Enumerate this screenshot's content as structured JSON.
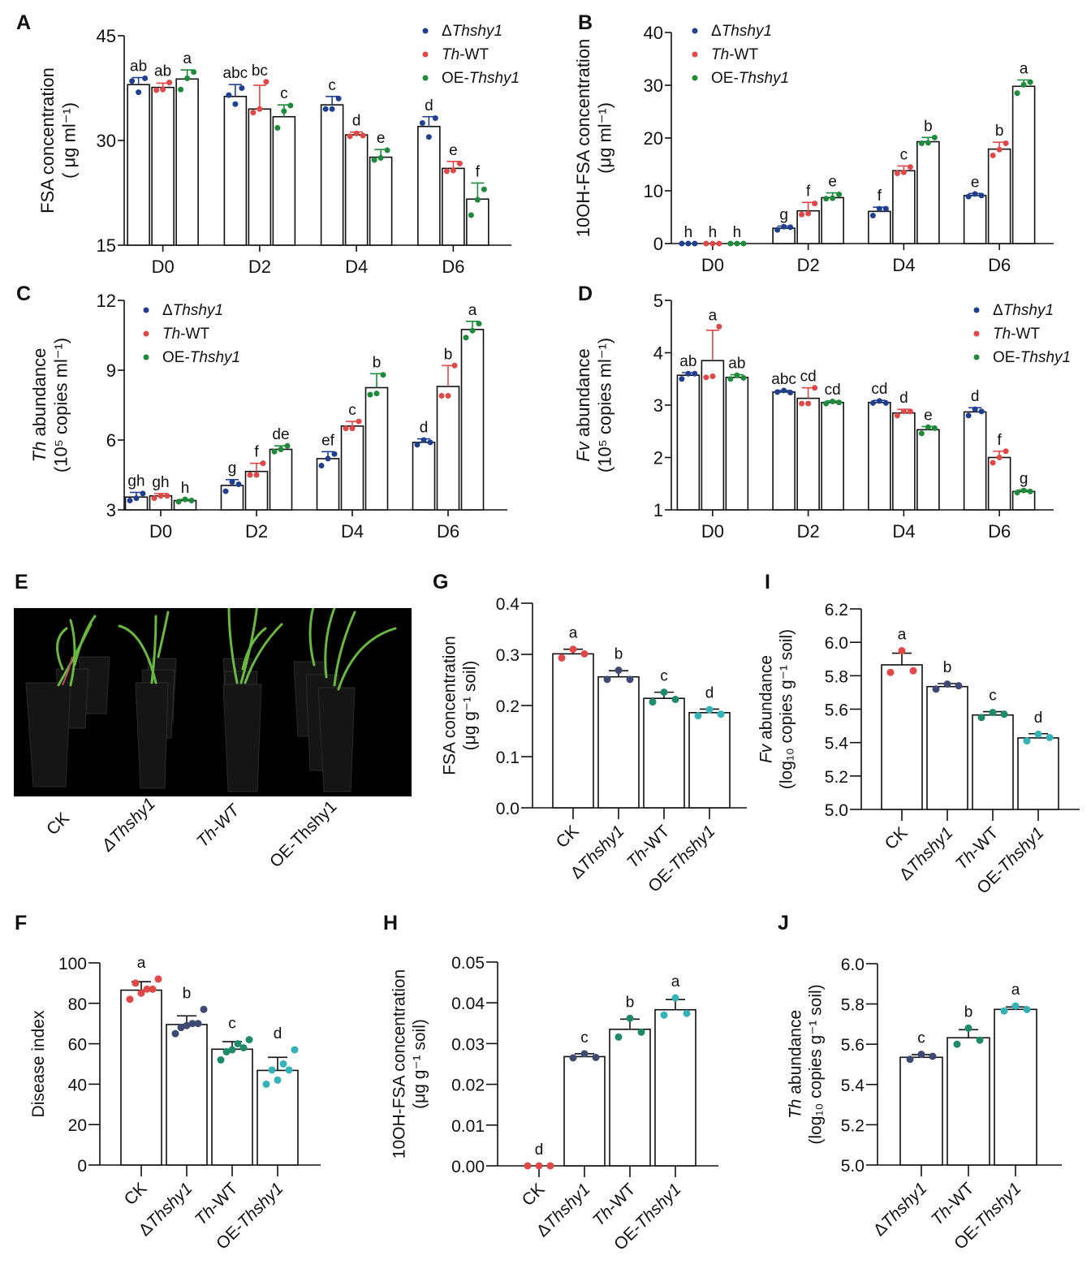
{
  "colors": {
    "blue": "#1f3f8f",
    "red": "#e04848",
    "green": "#1e8a3c",
    "navy": "#3e4a72",
    "teal_green": "#1f8a6a",
    "cyan": "#33b3b8"
  },
  "legend": [
    {
      "prefix": "Δ",
      "italic": "Thshy1",
      "suffix": "",
      "color": "#1f3f8f"
    },
    {
      "prefix": "",
      "italic": "Th",
      "suffix": "-WT",
      "color": "#e04848"
    },
    {
      "prefix": "OE-",
      "italic": "Thshy1",
      "suffix": "",
      "color": "#1e8a3c"
    }
  ],
  "panel_E": {
    "label": "E",
    "photo_labels": [
      "CK",
      "ΔThshy1",
      "Th-WT",
      "OE-Thshy1"
    ]
  },
  "chart_data": [
    {
      "id": "A",
      "label": "A",
      "type": "bar",
      "ylabel_line1": "FSA concentration",
      "ylabel_line2": "( μg ml⁻¹)",
      "ylim": [
        15,
        45
      ],
      "yticks": [
        15,
        30,
        45
      ],
      "categories": [
        "D0",
        "D2",
        "D4",
        "D6"
      ],
      "legend_position": "top-right",
      "series": [
        {
          "name": "ΔThshy1",
          "color": "#1f3f8f",
          "values": [
            38.0,
            36.3,
            35.1,
            32.0
          ],
          "err": [
            1.0,
            1.7,
            1.2,
            1.4
          ],
          "points": [
            [
              38.5,
              36.9,
              38.9
            ],
            [
              36.5,
              35.2,
              37.5
            ],
            [
              34.5,
              34.5,
              36.0
            ],
            [
              32.5,
              30.5,
              33.2
            ]
          ],
          "letters": [
            "ab",
            "abc",
            "c",
            "d"
          ]
        },
        {
          "name": "Th-WT",
          "color": "#e04848",
          "values": [
            37.6,
            34.5,
            30.8,
            26.0
          ],
          "err": [
            0.6,
            3.4,
            0.4,
            1.0
          ],
          "points": [
            [
              37.2,
              37.3,
              38.3
            ],
            [
              34.0,
              34.5,
              38.4
            ],
            [
              30.6,
              31.0,
              30.7
            ],
            [
              25.6,
              25.7,
              26.7
            ]
          ],
          "letters": [
            "ab",
            "bc",
            "d",
            "e"
          ]
        },
        {
          "name": "OE-Thshy1",
          "color": "#1e8a3c",
          "values": [
            38.8,
            33.4,
            27.6,
            21.6
          ],
          "err": [
            1.3,
            1.7,
            1.1,
            2.3
          ],
          "points": [
            [
              37.3,
              38.9,
              39.8
            ],
            [
              31.8,
              34.2,
              35.0
            ],
            [
              27.2,
              27.5,
              28.6
            ],
            [
              19.3,
              21.5,
              23.0
            ]
          ],
          "letters": [
            "a",
            "c",
            "e",
            "f"
          ]
        }
      ]
    },
    {
      "id": "B",
      "label": "B",
      "type": "bar",
      "ylabel_line1": "10OH-FSA concentration",
      "ylabel_line2": "(μg ml⁻¹)",
      "ylim": [
        0,
        40
      ],
      "yticks": [
        0,
        10,
        20,
        30,
        40
      ],
      "categories": [
        "D0",
        "D2",
        "D4",
        "D6"
      ],
      "legend_position": "top-left",
      "series": [
        {
          "name": "ΔThshy1",
          "color": "#1f3f8f",
          "values": [
            0,
            2.9,
            6.1,
            9.1
          ],
          "err": [
            0,
            0.4,
            0.8,
            0.4
          ],
          "points": [
            [
              0,
              0,
              0
            ],
            [
              2.6,
              3.2,
              3.1
            ],
            [
              5.3,
              6.6,
              6.6
            ],
            [
              8.9,
              9.4,
              9.1
            ]
          ],
          "letters": [
            "h",
            "g",
            "f",
            "e"
          ]
        },
        {
          "name": "Th-WT",
          "color": "#e04848",
          "values": [
            0,
            6.2,
            13.8,
            17.9
          ],
          "err": [
            0,
            1.6,
            0.9,
            1.3
          ],
          "points": [
            [
              0,
              0,
              0
            ],
            [
              5.5,
              5.7,
              7.6
            ],
            [
              13.3,
              13.5,
              14.5
            ],
            [
              16.7,
              17.8,
              19.0
            ]
          ],
          "letters": [
            "h",
            "f",
            "c",
            "b"
          ]
        },
        {
          "name": "OE-Thshy1",
          "color": "#1e8a3c",
          "values": [
            0,
            8.7,
            19.3,
            29.8
          ],
          "err": [
            0,
            0.9,
            0.8,
            1.2
          ],
          "points": [
            [
              0,
              0,
              0
            ],
            [
              8.5,
              8.6,
              9.3
            ],
            [
              19.0,
              19.1,
              20.1
            ],
            [
              28.5,
              30.1,
              30.6
            ]
          ],
          "letters": [
            "h",
            "e",
            "b",
            "a"
          ]
        }
      ]
    },
    {
      "id": "C",
      "label": "C",
      "type": "bar",
      "ylabel_line1_italic": "Th",
      "ylabel_line1": " abundance",
      "ylabel_line2": "(10⁵ copies ml⁻¹)",
      "ylim": [
        3,
        12
      ],
      "yticks": [
        3,
        6,
        9,
        12
      ],
      "categories": [
        "D0",
        "D2",
        "D4",
        "D6"
      ],
      "legend_position": "top-left",
      "series": [
        {
          "name": "ΔThshy1",
          "color": "#1f3f8f",
          "values": [
            3.55,
            4.05,
            5.2,
            5.9
          ],
          "err": [
            0.2,
            0.25,
            0.3,
            0.15
          ],
          "points": [
            [
              3.4,
              3.5,
              3.7
            ],
            [
              3.8,
              4.2,
              4.1
            ],
            [
              4.9,
              5.2,
              5.4
            ],
            [
              5.8,
              6.0,
              5.9
            ]
          ],
          "letters": [
            "gh",
            "g",
            "ef",
            "d"
          ]
        },
        {
          "name": "Th-WT",
          "color": "#e04848",
          "values": [
            3.6,
            4.65,
            6.6,
            8.3
          ],
          "err": [
            0.1,
            0.35,
            0.2,
            0.9
          ],
          "points": [
            [
              3.5,
              3.6,
              3.6
            ],
            [
              4.5,
              4.5,
              5.0
            ],
            [
              6.5,
              6.5,
              6.8
            ],
            [
              7.9,
              7.9,
              9.2
            ]
          ],
          "letters": [
            "gh",
            "f",
            "c",
            "b"
          ]
        },
        {
          "name": "OE-Thshy1",
          "color": "#1e8a3c",
          "values": [
            3.4,
            5.6,
            8.25,
            10.75
          ],
          "err": [
            0.05,
            0.15,
            0.6,
            0.35
          ],
          "points": [
            [
              3.35,
              3.45,
              3.4
            ],
            [
              5.5,
              5.6,
              5.75
            ],
            [
              7.95,
              8.0,
              8.8
            ],
            [
              10.4,
              10.7,
              11.0
            ]
          ],
          "letters": [
            "h",
            "de",
            "b",
            "a"
          ]
        }
      ]
    },
    {
      "id": "D",
      "label": "D",
      "type": "bar",
      "ylabel_line1_italic": "Fv",
      "ylabel_line1": " abundance",
      "ylabel_line2": "(10⁵ copies ml⁻¹)",
      "ylim": [
        1,
        5
      ],
      "yticks": [
        1,
        2,
        3,
        4,
        5
      ],
      "categories": [
        "D0",
        "D2",
        "D4",
        "D6"
      ],
      "legend_position": "top-right",
      "series": [
        {
          "name": "ΔThshy1",
          "color": "#1f3f8f",
          "values": [
            3.57,
            3.25,
            3.05,
            2.87
          ],
          "err": [
            0.05,
            0.03,
            0.04,
            0.08
          ],
          "points": [
            [
              3.5,
              3.6,
              3.6
            ],
            [
              3.25,
              3.28,
              3.24
            ],
            [
              3.04,
              3.08,
              3.04
            ],
            [
              2.8,
              2.92,
              2.88
            ]
          ],
          "letters": [
            "ab",
            "abc",
            "cd",
            "d"
          ]
        },
        {
          "name": "Th-WT",
          "color": "#e04848",
          "values": [
            3.85,
            3.13,
            2.85,
            2.0
          ],
          "err": [
            0.58,
            0.2,
            0.07,
            0.12
          ],
          "points": [
            [
              3.53,
              3.55,
              4.5
            ],
            [
              3.03,
              3.03,
              3.33
            ],
            [
              2.8,
              2.88,
              2.88
            ],
            [
              1.9,
              2.0,
              2.12
            ]
          ],
          "letters": [
            "a",
            "cd",
            "d",
            "f"
          ]
        },
        {
          "name": "OE-Thshy1",
          "color": "#1e8a3c",
          "values": [
            3.53,
            3.05,
            2.53,
            1.35
          ],
          "err": [
            0.05,
            0.03,
            0.06,
            0.03
          ],
          "points": [
            [
              3.5,
              3.57,
              3.52
            ],
            [
              3.03,
              3.07,
              3.05
            ],
            [
              2.46,
              2.58,
              2.56
            ],
            [
              1.33,
              1.37,
              1.35
            ]
          ],
          "letters": [
            "ab",
            "cd",
            "e",
            "g"
          ]
        }
      ]
    },
    {
      "id": "F",
      "label": "F",
      "type": "bar",
      "ylabel_line1": "Disease index",
      "ylim": [
        0,
        100
      ],
      "yticks": [
        0,
        20,
        40,
        60,
        80,
        100
      ],
      "categories": [
        "CK",
        "ΔThshy1",
        "Th-WT",
        "OE-Thshy1"
      ],
      "values": [
        86.5,
        69.5,
        57.3,
        46.8
      ],
      "err": [
        4.2,
        4.3,
        3.7,
        6.5
      ],
      "points": [
        [
          82,
          85,
          87,
          90,
          87,
          92
        ],
        [
          65,
          69,
          70,
          68,
          70,
          77
        ],
        [
          52,
          57,
          58,
          56,
          60,
          62
        ],
        [
          40,
          42,
          47,
          47,
          50,
          57
        ]
      ],
      "letters": [
        "a",
        "b",
        "c",
        "d"
      ],
      "colors": [
        "#e04848",
        "#3e4a72",
        "#1f8a6a",
        "#33b3b8"
      ]
    },
    {
      "id": "G",
      "label": "G",
      "type": "bar",
      "ylabel_line1": "FSA concentration",
      "ylabel_line2": "(μg g⁻¹ soil)",
      "ylim": [
        0,
        0.4
      ],
      "yticks": [
        "0.0",
        "0.1",
        "0.2",
        "0.3",
        "0.4"
      ],
      "categories": [
        "CK",
        "ΔThshy1",
        "Th-WT",
        "OE-Thshy1"
      ],
      "values": [
        0.301,
        0.256,
        0.214,
        0.186
      ],
      "err": [
        0.009,
        0.012,
        0.012,
        0.007
      ],
      "points": [
        [
          0.293,
          0.31,
          0.301
        ],
        [
          0.251,
          0.269,
          0.251
        ],
        [
          0.207,
          0.226,
          0.212
        ],
        [
          0.18,
          0.192,
          0.183
        ]
      ],
      "letters": [
        "a",
        "b",
        "c",
        "d"
      ],
      "colors": [
        "#e04848",
        "#3e4a72",
        "#1f8a6a",
        "#33b3b8"
      ]
    },
    {
      "id": "H",
      "label": "H",
      "type": "bar",
      "ylabel_line1": "10OH-FSA concentration",
      "ylabel_line2": "(μg g⁻¹ soil)",
      "ylim": [
        0,
        0.05
      ],
      "yticks": [
        "0.00",
        "0.01",
        "0.02",
        "0.03",
        "0.04",
        "0.05"
      ],
      "categories": [
        "CK",
        "ΔThshy1",
        "Th-WT",
        "OE-Thshy1"
      ],
      "values": [
        0,
        0.0268,
        0.0335,
        0.0383
      ],
      "err": [
        0,
        0.0007,
        0.0025,
        0.0025
      ],
      "points": [
        [
          0,
          0,
          0
        ],
        [
          0.0265,
          0.0275,
          0.0266
        ],
        [
          0.0316,
          0.0362,
          0.0328
        ],
        [
          0.037,
          0.0412,
          0.0374
        ]
      ],
      "letters": [
        "d",
        "c",
        "b",
        "a"
      ],
      "colors": [
        "#e04848",
        "#3e4a72",
        "#1f8a6a",
        "#33b3b8"
      ]
    },
    {
      "id": "I",
      "label": "I",
      "type": "bar",
      "ylabel_line1_italic": "Fv",
      "ylabel_line1": " abundance",
      "ylabel_line2": "(log₁₀ copies g⁻¹ soil)",
      "ylim": [
        5.0,
        6.2
      ],
      "yticks": [
        "5.0",
        "5.2",
        "5.4",
        "5.6",
        "5.8",
        "6.0",
        "6.2"
      ],
      "categories": [
        "CK",
        "ΔThshy1",
        "Th-WT",
        "OE-Thshy1"
      ],
      "values": [
        5.865,
        5.735,
        5.565,
        5.428
      ],
      "err": [
        0.07,
        0.018,
        0.02,
        0.025
      ],
      "points": [
        [
          5.82,
          5.95,
          5.83
        ],
        [
          5.72,
          5.75,
          5.74
        ],
        [
          5.55,
          5.58,
          5.57
        ],
        [
          5.41,
          5.45,
          5.43
        ]
      ],
      "letters": [
        "a",
        "b",
        "c",
        "d"
      ],
      "colors": [
        "#e04848",
        "#3e4a72",
        "#1f8a6a",
        "#33b3b8"
      ]
    },
    {
      "id": "J",
      "label": "J",
      "type": "bar",
      "ylabel_line1_italic": "Th",
      "ylabel_line1": " abundance",
      "ylabel_line2": "(log₁₀ copies g⁻¹ soil)",
      "ylim": [
        5.0,
        6.0
      ],
      "yticks": [
        "5.0",
        "5.2",
        "5.4",
        "5.6",
        "5.8",
        "6.0"
      ],
      "categories": [
        "ΔThshy1",
        "Th-WT",
        "OE-Thshy1"
      ],
      "values": [
        5.535,
        5.632,
        5.773
      ],
      "err": [
        0.013,
        0.04,
        0.012
      ],
      "points": [
        [
          5.525,
          5.55,
          5.54
        ],
        [
          5.6,
          5.68,
          5.62
        ],
        [
          5.765,
          5.79,
          5.772
        ]
      ],
      "letters": [
        "c",
        "b",
        "a"
      ],
      "colors": [
        "#3e4a72",
        "#1f8a6a",
        "#33b3b8"
      ]
    }
  ]
}
